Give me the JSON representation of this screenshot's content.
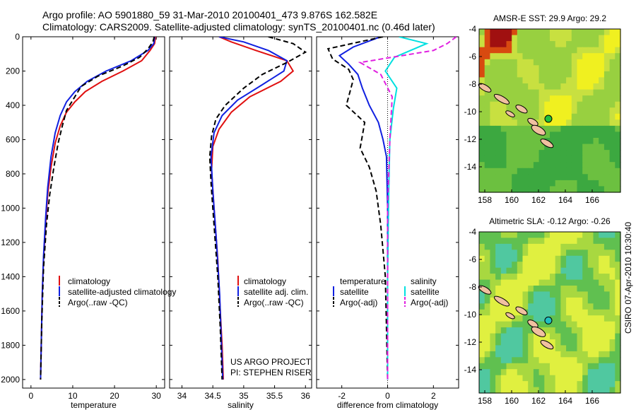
{
  "header": {
    "line1": "Argo profile: AO 5901880_59 31-Mar-2010 20100401_473 9.876S 162.582E",
    "line2": "Climatology: CARS2009. Satellite-adjusted climatology: synTS_20100401.nc (0.46d later)"
  },
  "colors": {
    "clim": "#e01010",
    "sat": "#1020e0",
    "argo": "#000000",
    "sat_sal": "#00e0e0",
    "argo_sal": "#e020e0"
  },
  "chart_data": [
    {
      "type": "line",
      "xlabel": "temperature",
      "ylim": [
        2050,
        0
      ],
      "xlim": [
        -2,
        32
      ],
      "xticks": [
        0,
        10,
        20,
        30
      ],
      "yticks": [
        0,
        200,
        400,
        600,
        800,
        1000,
        1200,
        1400,
        1600,
        1800,
        2000
      ],
      "legend": [
        "climatology",
        "satellite-adjusted climatology",
        "Argo(..raw -QC)"
      ],
      "series": [
        {
          "key": "clim",
          "style": "solid",
          "x": [
            29.8,
            29.6,
            28.5,
            26.5,
            22,
            17,
            13,
            10.5,
            8.5,
            7,
            5.8,
            4.8,
            4,
            3.5,
            3,
            2.7,
            2.5,
            2.3
          ],
          "y": [
            0,
            40,
            80,
            140,
            200,
            260,
            320,
            380,
            440,
            520,
            620,
            760,
            920,
            1100,
            1300,
            1500,
            1750,
            2000
          ]
        },
        {
          "key": "sat",
          "style": "solid",
          "x": [
            29.6,
            29.4,
            28,
            24,
            18,
            13.5,
            10.5,
            8.5,
            7,
            5.8,
            4.8,
            4,
            3.5,
            3,
            2.7,
            2.5,
            2.3
          ],
          "y": [
            0,
            40,
            80,
            140,
            200,
            260,
            320,
            380,
            460,
            560,
            700,
            880,
            1060,
            1280,
            1500,
            1750,
            2000
          ]
        },
        {
          "key": "argo",
          "style": "dashed",
          "x": [
            29.5,
            29.2,
            28,
            26,
            22,
            16,
            12,
            10.5,
            8.5,
            7.5,
            6.5,
            5.5,
            4.5,
            3.7,
            3,
            2.6,
            2.3
          ],
          "y": [
            0,
            30,
            70,
            120,
            170,
            230,
            290,
            350,
            430,
            520,
            620,
            760,
            920,
            1100,
            1350,
            1650,
            2000
          ]
        }
      ]
    },
    {
      "type": "line",
      "xlabel": "salinity",
      "ylim": [
        2050,
        0
      ],
      "xlim": [
        33.8,
        36.1
      ],
      "xticks": [
        34,
        34.5,
        35,
        35.5,
        36
      ],
      "legend": [
        "climatology",
        "satellite adj. clim.",
        "Argo(..raw -QC)"
      ],
      "series": [
        {
          "key": "clim",
          "style": "solid",
          "x": [
            34.6,
            34.8,
            35.2,
            35.7,
            35.8,
            35.6,
            35.1,
            34.8,
            34.6,
            34.5,
            34.48,
            34.52,
            34.58,
            34.62,
            34.65,
            34.67
          ],
          "y": [
            0,
            30,
            80,
            140,
            200,
            260,
            350,
            440,
            540,
            640,
            780,
            1000,
            1300,
            1600,
            1800,
            2000
          ]
        },
        {
          "key": "sat",
          "style": "solid",
          "x": [
            34.6,
            35,
            35.4,
            35.7,
            35.65,
            35.3,
            34.9,
            34.65,
            34.52,
            34.47,
            34.5,
            34.56,
            34.61,
            34.64,
            34.66
          ],
          "y": [
            0,
            30,
            80,
            140,
            200,
            280,
            370,
            460,
            560,
            700,
            900,
            1200,
            1500,
            1800,
            2000
          ]
        },
        {
          "key": "argo",
          "style": "dashed",
          "x": [
            35.4,
            35.8,
            36.0,
            35.7,
            35.3,
            35.0,
            34.7,
            34.55,
            34.48,
            34.45,
            34.47,
            34.52,
            34.58,
            34.62,
            34.65
          ],
          "y": [
            0,
            40,
            90,
            150,
            220,
            300,
            400,
            480,
            580,
            700,
            850,
            1100,
            1400,
            1700,
            2000
          ]
        }
      ]
    },
    {
      "type": "line",
      "xlabel": "difference from climatology",
      "ylim": [
        2050,
        0
      ],
      "xlim": [
        -3.1,
        3.1
      ],
      "xticks": [
        -2,
        0,
        2
      ],
      "legend_left": {
        "title": "temperature",
        "items": [
          "satellite",
          "Argo(-adj)"
        ]
      },
      "legend_right": {
        "title": "salinity",
        "items": [
          "satellite",
          "Argo(-adj)"
        ]
      },
      "series": [
        {
          "key": "sat",
          "style": "solid",
          "x": [
            -0.3,
            -1.5,
            -2.1,
            -1.7,
            -1.3,
            -1.1,
            -0.8,
            -0.4,
            -0.2,
            -0.05,
            0,
            0,
            0
          ],
          "y": [
            0,
            60,
            110,
            160,
            220,
            300,
            400,
            500,
            600,
            700,
            1000,
            1500,
            2000
          ]
        },
        {
          "key": "argo",
          "style": "dashed",
          "x": [
            -0.2,
            -2.6,
            -2.4,
            -1.7,
            -1.5,
            -1.8,
            -1.0,
            -1.2,
            -0.8,
            -0.5,
            -0.3,
            -0.1,
            0
          ],
          "y": [
            0,
            70,
            130,
            190,
            250,
            400,
            500,
            650,
            760,
            900,
            1100,
            1400,
            2000
          ]
        },
        {
          "key": "sat_sal",
          "style": "solid",
          "x": [
            0.5,
            1.7,
            0.3,
            -0.1,
            0.4,
            0.25,
            0.1,
            0.05,
            0,
            0
          ],
          "y": [
            0,
            40,
            120,
            200,
            300,
            420,
            600,
            900,
            1400,
            2000
          ]
        },
        {
          "key": "argo_sal",
          "style": "dashed",
          "x": [
            3.0,
            2.6,
            2.0,
            -1.2,
            -0.3,
            0.2,
            0.1,
            0,
            0
          ],
          "y": [
            0,
            40,
            80,
            150,
            220,
            350,
            600,
            1000,
            2000
          ]
        }
      ]
    }
  ],
  "maps": [
    {
      "title": "AMSR-E SST: 29.9 Argo: 29.2",
      "xticks": [
        "158",
        "160",
        "162",
        "164",
        "166"
      ],
      "yticks": [
        "-4",
        "-6",
        "-8",
        "-10",
        "-12",
        "-14"
      ]
    },
    {
      "title": "Altimetric SLA: -0.12 Argo: -0.26",
      "xticks": [
        "158",
        "160",
        "162",
        "164",
        "166"
      ],
      "yticks": [
        "-4",
        "-6",
        "-8",
        "-10",
        "-12",
        "-14"
      ]
    }
  ],
  "project_note": [
    "US ARGO PROJECT",
    "PI: STEPHEN RISER"
  ],
  "side_stamp": "CSIRO 07-Apr-2010 10:30:40"
}
